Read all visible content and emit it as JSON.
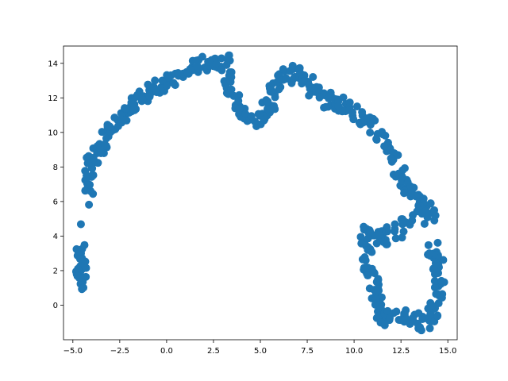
{
  "chart_data": {
    "type": "scatter",
    "title": "",
    "xlabel": "",
    "ylabel": "",
    "xlim": [
      -5.5,
      15.5
    ],
    "ylim": [
      -2.0,
      15.0
    ],
    "xticks": [
      -5.0,
      -2.5,
      0.0,
      2.5,
      5.0,
      7.5,
      10.0,
      12.5,
      15.0
    ],
    "xtick_labels": [
      "−5.0",
      "−2.5",
      "0.0",
      "2.5",
      "5.0",
      "7.5",
      "10.0",
      "12.5",
      "15.0"
    ],
    "yticks": [
      0,
      2,
      4,
      6,
      8,
      10,
      12,
      14
    ],
    "ytick_labels": [
      "0",
      "2",
      "4",
      "6",
      "8",
      "10",
      "12",
      "14"
    ],
    "grid": false,
    "color": "#1f77b4",
    "series": [
      {
        "name": "points",
        "outline": [
          [
            -4.5,
            3.2
          ],
          [
            -4.6,
            2.6
          ],
          [
            -4.6,
            2.0
          ],
          [
            -4.5,
            1.5
          ],
          [
            -4.5,
            1.1
          ],
          [
            -4.2,
            6.6
          ],
          [
            -4.2,
            7.0
          ],
          [
            -4.1,
            7.6
          ],
          [
            -4.0,
            8.2
          ],
          [
            -3.8,
            8.7
          ],
          [
            -3.5,
            9.2
          ],
          [
            -3.3,
            9.6
          ],
          [
            -3.0,
            10.0
          ],
          [
            -2.7,
            10.3
          ],
          [
            -2.4,
            10.7
          ],
          [
            -2.2,
            11.1
          ],
          [
            -1.9,
            11.5
          ],
          [
            -1.6,
            11.8
          ],
          [
            -1.2,
            12.1
          ],
          [
            -0.8,
            12.5
          ],
          [
            -0.4,
            12.8
          ],
          [
            0.0,
            12.9
          ],
          [
            0.5,
            13.0
          ],
          [
            0.9,
            13.3
          ],
          [
            1.3,
            13.7
          ],
          [
            1.8,
            13.9
          ],
          [
            2.2,
            14.0
          ],
          [
            2.7,
            14.2
          ],
          [
            3.1,
            14.1
          ],
          [
            3.3,
            13.6
          ],
          [
            3.4,
            13.0
          ],
          [
            3.5,
            12.4
          ],
          [
            3.7,
            11.8
          ],
          [
            4.0,
            11.2
          ],
          [
            4.3,
            10.9
          ],
          [
            4.7,
            10.7
          ],
          [
            5.1,
            10.8
          ],
          [
            5.4,
            11.3
          ],
          [
            5.6,
            11.8
          ],
          [
            5.7,
            12.3
          ],
          [
            5.8,
            12.8
          ],
          [
            6.0,
            13.2
          ],
          [
            6.4,
            13.3
          ],
          [
            6.8,
            13.4
          ],
          [
            7.1,
            13.7
          ],
          [
            7.4,
            13.3
          ],
          [
            7.6,
            12.8
          ],
          [
            7.9,
            12.4
          ],
          [
            8.2,
            12.0
          ],
          [
            8.6,
            11.8
          ],
          [
            9.0,
            11.6
          ],
          [
            9.4,
            11.7
          ],
          [
            9.8,
            11.5
          ],
          [
            10.2,
            11.0
          ],
          [
            10.6,
            10.7
          ],
          [
            11.0,
            10.3
          ],
          [
            11.4,
            9.8
          ],
          [
            11.7,
            9.2
          ],
          [
            12.0,
            8.7
          ],
          [
            12.3,
            8.1
          ],
          [
            12.5,
            7.5
          ],
          [
            12.8,
            7.0
          ],
          [
            13.1,
            6.5
          ],
          [
            13.4,
            6.1
          ],
          [
            13.7,
            5.8
          ],
          [
            14.0,
            5.5
          ],
          [
            14.2,
            5.2
          ],
          [
            13.0,
            4.9
          ],
          [
            12.6,
            4.6
          ],
          [
            12.2,
            4.3
          ],
          [
            11.8,
            4.0
          ],
          [
            11.4,
            3.9
          ],
          [
            11.0,
            4.0
          ],
          [
            10.6,
            4.2
          ],
          [
            10.6,
            3.5
          ],
          [
            10.7,
            2.8
          ],
          [
            10.8,
            2.1
          ],
          [
            11.0,
            1.5
          ],
          [
            11.1,
            0.9
          ],
          [
            11.2,
            0.3
          ],
          [
            11.3,
            -0.2
          ],
          [
            11.5,
            -0.6
          ],
          [
            11.8,
            -0.8
          ],
          [
            12.3,
            -0.6
          ],
          [
            12.8,
            -0.5
          ],
          [
            13.2,
            -0.8
          ],
          [
            13.6,
            -1.1
          ],
          [
            14.0,
            -0.8
          ],
          [
            14.3,
            -0.3
          ],
          [
            14.4,
            0.3
          ],
          [
            14.5,
            0.9
          ],
          [
            14.6,
            1.5
          ],
          [
            14.6,
            2.2
          ],
          [
            14.4,
            2.8
          ],
          [
            14.2,
            3.2
          ]
        ]
      }
    ]
  }
}
